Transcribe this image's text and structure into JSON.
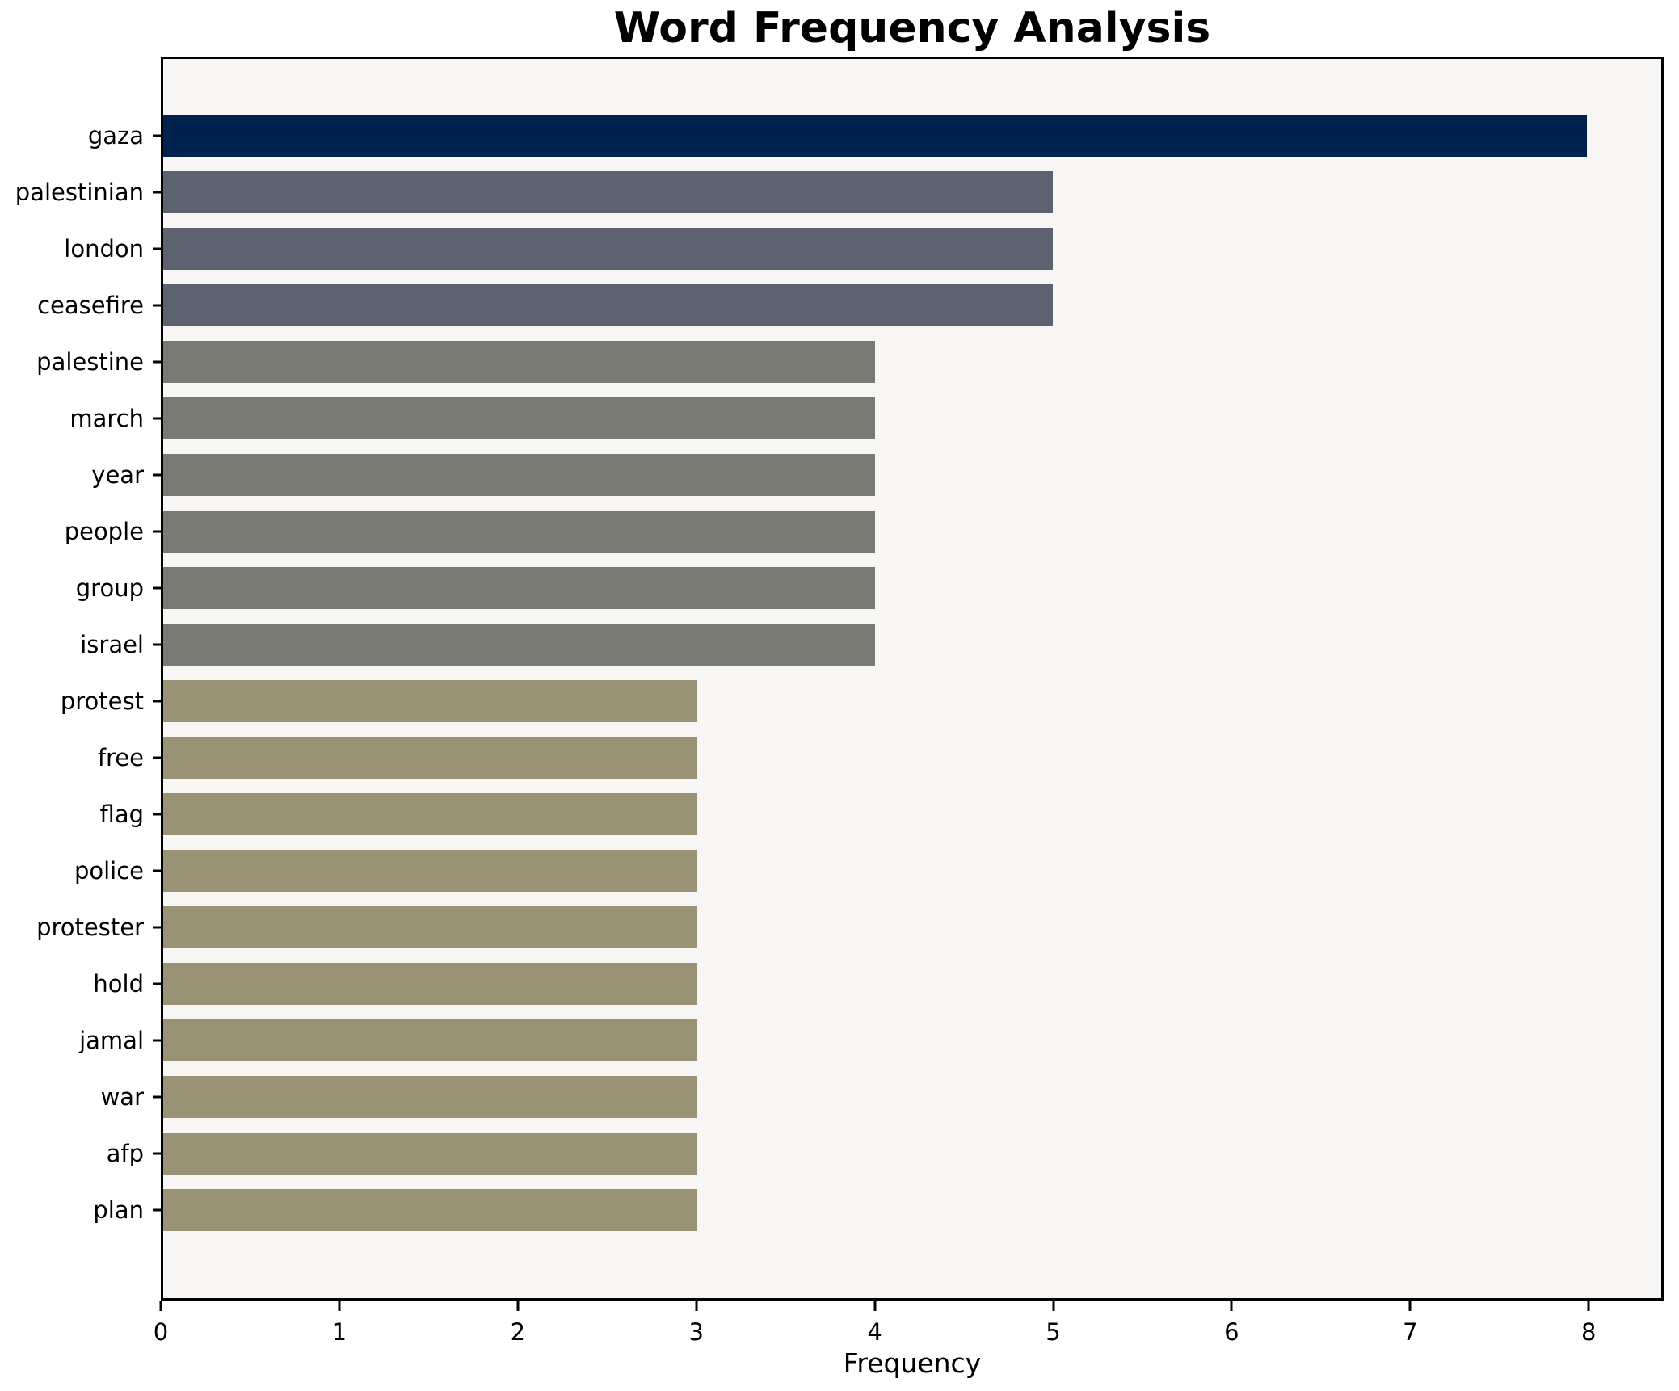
{
  "chart_data": {
    "type": "bar",
    "orientation": "horizontal",
    "title": "Word Frequency Analysis",
    "xlabel": "Frequency",
    "ylabel": "",
    "categories": [
      "gaza",
      "palestinian",
      "london",
      "ceasefire",
      "palestine",
      "march",
      "year",
      "people",
      "group",
      "israel",
      "protest",
      "free",
      "flag",
      "police",
      "protester",
      "hold",
      "jamal",
      "war",
      "afp",
      "plan"
    ],
    "values": [
      8,
      5,
      5,
      5,
      4,
      4,
      4,
      4,
      4,
      4,
      3,
      3,
      3,
      3,
      3,
      3,
      3,
      3,
      3,
      3
    ],
    "bar_colors": [
      "#00224e",
      "#5d6270",
      "#5d6270",
      "#5d6270",
      "#7a7a75",
      "#7a7a75",
      "#7a7a75",
      "#7a7a75",
      "#7a7a75",
      "#7a7a75",
      "#9a9274",
      "#9a9274",
      "#9a9274",
      "#9a9274",
      "#9a9274",
      "#9a9274",
      "#9a9274",
      "#9a9274",
      "#9a9274",
      "#9a9274"
    ],
    "xlim": [
      0,
      8.42
    ],
    "xticks": [
      0,
      1,
      2,
      3,
      4,
      5,
      6,
      7,
      8
    ],
    "grid": false,
    "legend": null,
    "plot_background": "#f7f6f4",
    "figure_background": "#ffffff",
    "spine_color": "#000000"
  }
}
